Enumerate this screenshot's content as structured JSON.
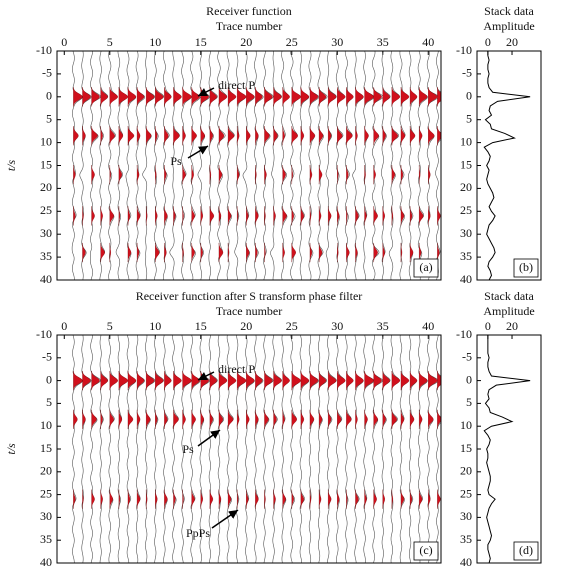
{
  "chart_data": [
    {
      "type": "wiggle",
      "title": "Receiver function",
      "xlabel": "Trace number",
      "ylabel": "t/s",
      "panel_label": "(a)",
      "xlim": [
        -0.8,
        41.4
      ],
      "xticks": [
        0,
        5,
        10,
        15,
        20,
        25,
        30,
        35,
        40
      ],
      "ylim": [
        -10,
        40
      ],
      "yticks": [
        -10,
        -5,
        0,
        5,
        10,
        15,
        20,
        25,
        30,
        35,
        40
      ],
      "annotations": [
        "direct P",
        "Ps"
      ],
      "series": [
        {
          "t": 0,
          "values": [
            0.9,
            0.8,
            0.8,
            0.7,
            0.8,
            0.9,
            0.8,
            0.7,
            0.8,
            0.8,
            0.7,
            0.8,
            0.9,
            0.8,
            0.8,
            0.7,
            0.8,
            0.8,
            0.9,
            0.8,
            0.7,
            0.8,
            0.8,
            0.7,
            0.9,
            0.8,
            0.8,
            0.7,
            0.8,
            0.8,
            0.7,
            0.8,
            0.9,
            0.8,
            0.7,
            0.8,
            0.8,
            0.7,
            0.8,
            0.9,
            0.8
          ]
        },
        {
          "t": 8.5,
          "values": [
            0.5,
            0.3,
            0.6,
            0.2,
            0.5,
            0.4,
            0.6,
            0.3,
            0.5,
            0.2,
            0.4,
            0.6,
            0.3,
            0.5,
            0.4,
            0.3,
            0.5,
            0.6,
            0.2,
            0.4,
            0.3,
            0.5,
            0.4,
            0.2,
            0.6,
            0.3,
            0.5,
            0.4,
            0.3,
            0.5,
            0.6,
            0.2,
            0.4,
            0.5,
            0.3,
            0.6,
            0.4,
            0.5,
            0.3,
            0.6,
            0.5
          ]
        },
        {
          "t": 17,
          "values": [
            0.2,
            -0.2,
            0.3,
            -0.1,
            0.1,
            0.3,
            -0.2,
            0.2,
            -0.3,
            0.1,
            0.2,
            -0.1,
            0.3,
            0.2,
            -0.2,
            0.1,
            0.3,
            -0.1,
            0.2,
            -0.3,
            0.1,
            0.2,
            -0.2,
            0.3,
            0.1,
            -0.1,
            0.2,
            0.3,
            -0.2,
            0.1,
            0.2,
            -0.3,
            0.1,
            0.2,
            -0.1,
            0.3,
            0.2,
            -0.2,
            0.1,
            0.2,
            -0.1
          ]
        },
        {
          "t": 26,
          "values": [
            0.2,
            0.1,
            0.3,
            0.2,
            0.4,
            0.1,
            0.2,
            0.3,
            0.1,
            0.2,
            0.3,
            0.2,
            0.1,
            0.3,
            0.2,
            0.4,
            0.2,
            0.3,
            0.1,
            0.2,
            0.3,
            0.1,
            0.2,
            0.4,
            0.2,
            0.3,
            0.1,
            0.2,
            0.3,
            0.2,
            0.1,
            0.3,
            0.2,
            0.4,
            0.2,
            0.1,
            0.3,
            0.2,
            0.4,
            0.2,
            0.3
          ]
        },
        {
          "t": 34,
          "values": [
            -0.1,
            0.3,
            -0.2,
            0.4,
            0.1,
            -0.2,
            0.3,
            0.2,
            -0.1,
            0.4,
            0.2,
            -0.3,
            0.1,
            0.3,
            0.2,
            -0.1,
            0.4,
            0.1,
            -0.2,
            0.3,
            0.2,
            0.1,
            -0.3,
            0.2,
            0.4,
            -0.1,
            0.2,
            0.3,
            -0.2,
            0.1,
            0.3,
            0.2,
            -0.1,
            0.4,
            0.2,
            -0.2,
            0.1,
            0.3,
            0.2,
            -0.1,
            0.2
          ]
        }
      ]
    },
    {
      "type": "line",
      "title": "Stack data",
      "xlabel": "Amplitude",
      "panel_label": "(b)",
      "xlim": [
        -9,
        44
      ],
      "xticks": [
        0,
        20
      ],
      "ylim": [
        -10,
        40
      ],
      "yticks": [
        -10,
        -5,
        0,
        5,
        10,
        15,
        20,
        25,
        30,
        35,
        40
      ],
      "y": [
        -10,
        -9,
        -8,
        -7,
        -6,
        -5,
        -4,
        -3,
        -2,
        -1,
        0,
        1,
        2,
        3,
        4,
        5,
        6,
        7,
        8,
        9,
        10,
        11,
        12,
        13,
        14,
        15,
        16,
        17,
        18,
        19,
        20,
        21,
        22,
        23,
        24,
        25,
        26,
        27,
        28,
        29,
        30,
        31,
        32,
        33,
        34,
        35,
        36,
        37,
        38,
        39,
        40
      ],
      "values": [
        0,
        0,
        1,
        0,
        0,
        1,
        0,
        0,
        1,
        4,
        35,
        8,
        2,
        1,
        3,
        -2,
        2,
        3,
        14,
        22,
        4,
        -3,
        0,
        2,
        1,
        -1,
        1,
        0,
        -1,
        0,
        2,
        4,
        5,
        3,
        1,
        3,
        6,
        4,
        1,
        0,
        -1,
        1,
        3,
        5,
        6,
        4,
        1,
        0,
        2,
        3,
        1
      ]
    },
    {
      "type": "wiggle",
      "title": "Receiver function after S transform phase filter",
      "xlabel": "Trace number",
      "ylabel": "t/s",
      "panel_label": "(c)",
      "xlim": [
        -0.8,
        41.4
      ],
      "xticks": [
        0,
        5,
        10,
        15,
        20,
        25,
        30,
        35,
        40
      ],
      "ylim": [
        -10,
        40
      ],
      "yticks": [
        -10,
        -5,
        0,
        5,
        10,
        15,
        20,
        25,
        30,
        35,
        40
      ],
      "annotations": [
        "direct P",
        "Ps",
        "PpPs"
      ],
      "series": [
        {
          "t": 0,
          "values": [
            0.9,
            0.8,
            0.8,
            0.7,
            0.8,
            0.9,
            0.8,
            0.7,
            0.8,
            0.8,
            0.7,
            0.8,
            0.9,
            0.8,
            0.8,
            0.7,
            0.8,
            0.8,
            0.9,
            0.8,
            0.7,
            0.8,
            0.8,
            0.7,
            0.9,
            0.8,
            0.8,
            0.7,
            0.8,
            0.8,
            0.7,
            0.8,
            0.9,
            0.8,
            0.7,
            0.8,
            0.8,
            0.7,
            0.8,
            0.9,
            0.8
          ]
        },
        {
          "t": 8.5,
          "values": [
            0.4,
            0.3,
            0.5,
            0.2,
            0.4,
            0.3,
            0.5,
            0.3,
            0.4,
            0.2,
            0.3,
            0.5,
            0.3,
            0.4,
            0.3,
            0.3,
            0.4,
            0.5,
            0.2,
            0.3,
            0.3,
            0.4,
            0.3,
            0.2,
            0.5,
            0.3,
            0.4,
            0.3,
            0.3,
            0.4,
            0.5,
            0.2,
            0.3,
            0.4,
            0.3,
            0.5,
            0.3,
            0.4,
            0.3,
            0.5,
            0.4
          ]
        },
        {
          "t": 26,
          "values": [
            0.2,
            0.1,
            0.3,
            0.2,
            0.3,
            0.1,
            0.2,
            0.3,
            0.1,
            0.2,
            0.3,
            0.2,
            0.1,
            0.3,
            0.2,
            0.3,
            0.2,
            0.3,
            0.1,
            0.2,
            0.3,
            0.1,
            0.2,
            0.3,
            0.2,
            0.3,
            0.1,
            0.2,
            0.3,
            0.2,
            0.1,
            0.3,
            0.2,
            0.3,
            0.2,
            0.1,
            0.3,
            0.2,
            0.3,
            0.2,
            0.3
          ]
        }
      ]
    },
    {
      "type": "line",
      "title": "Stack data",
      "xlabel": "Amplitude",
      "panel_label": "(d)",
      "xlim": [
        -9,
        44
      ],
      "xticks": [
        0,
        20
      ],
      "ylim": [
        -10,
        40
      ],
      "yticks": [
        -10,
        -5,
        0,
        5,
        10,
        15,
        20,
        25,
        30,
        35,
        40
      ],
      "y": [
        -10,
        -9,
        -8,
        -7,
        -6,
        -5,
        -4,
        -3,
        -2,
        -1,
        0,
        1,
        2,
        3,
        4,
        5,
        6,
        7,
        8,
        9,
        10,
        11,
        12,
        13,
        14,
        15,
        16,
        17,
        18,
        19,
        20,
        21,
        22,
        23,
        24,
        25,
        26,
        27,
        28,
        29,
        30,
        31,
        32,
        33,
        34,
        35,
        36,
        37,
        38,
        39,
        40
      ],
      "values": [
        0,
        0,
        0,
        0,
        0,
        1,
        0,
        0,
        1,
        3,
        35,
        7,
        1,
        0,
        1,
        -2,
        1,
        2,
        12,
        20,
        3,
        -3,
        0,
        2,
        1,
        -1,
        0,
        0,
        -1,
        0,
        1,
        2,
        2,
        1,
        0,
        1,
        6,
        3,
        1,
        0,
        -1,
        0,
        1,
        2,
        3,
        2,
        0,
        0,
        1,
        2,
        1
      ]
    }
  ]
}
